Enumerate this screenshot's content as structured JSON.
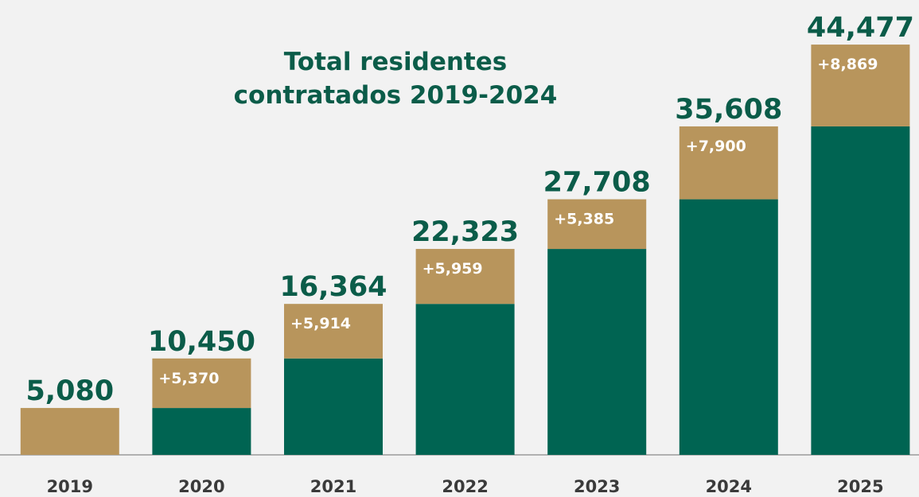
{
  "chart_data": {
    "type": "stacked_bar",
    "title": [
      "Total residentes",
      "contratados 2019-2024"
    ],
    "categories": [
      "2019",
      "2020",
      "2021",
      "2022",
      "2023",
      "2024",
      "2025"
    ],
    "series": [
      {
        "color": "#006452",
        "values": [
          null,
          5080,
          10450,
          16364,
          22323,
          27708,
          35608
        ]
      },
      {
        "color": "#b8955c",
        "values": [
          5080,
          5370,
          5914,
          5959,
          5385,
          7900,
          8869
        ],
        "value_labels": [
          null,
          "+5,370",
          "+5,914",
          "+5,959",
          "+5,385",
          "+7,900",
          "+8,869"
        ]
      }
    ],
    "totals": [
      5080,
      10450,
      16364,
      22323,
      27708,
      35608,
      44477
    ],
    "total_labels": [
      "5,080",
      "10,450",
      "16,364",
      "22,323",
      "27,708",
      "35,608",
      "44,477"
    ],
    "ylim": [
      0,
      45000
    ]
  }
}
